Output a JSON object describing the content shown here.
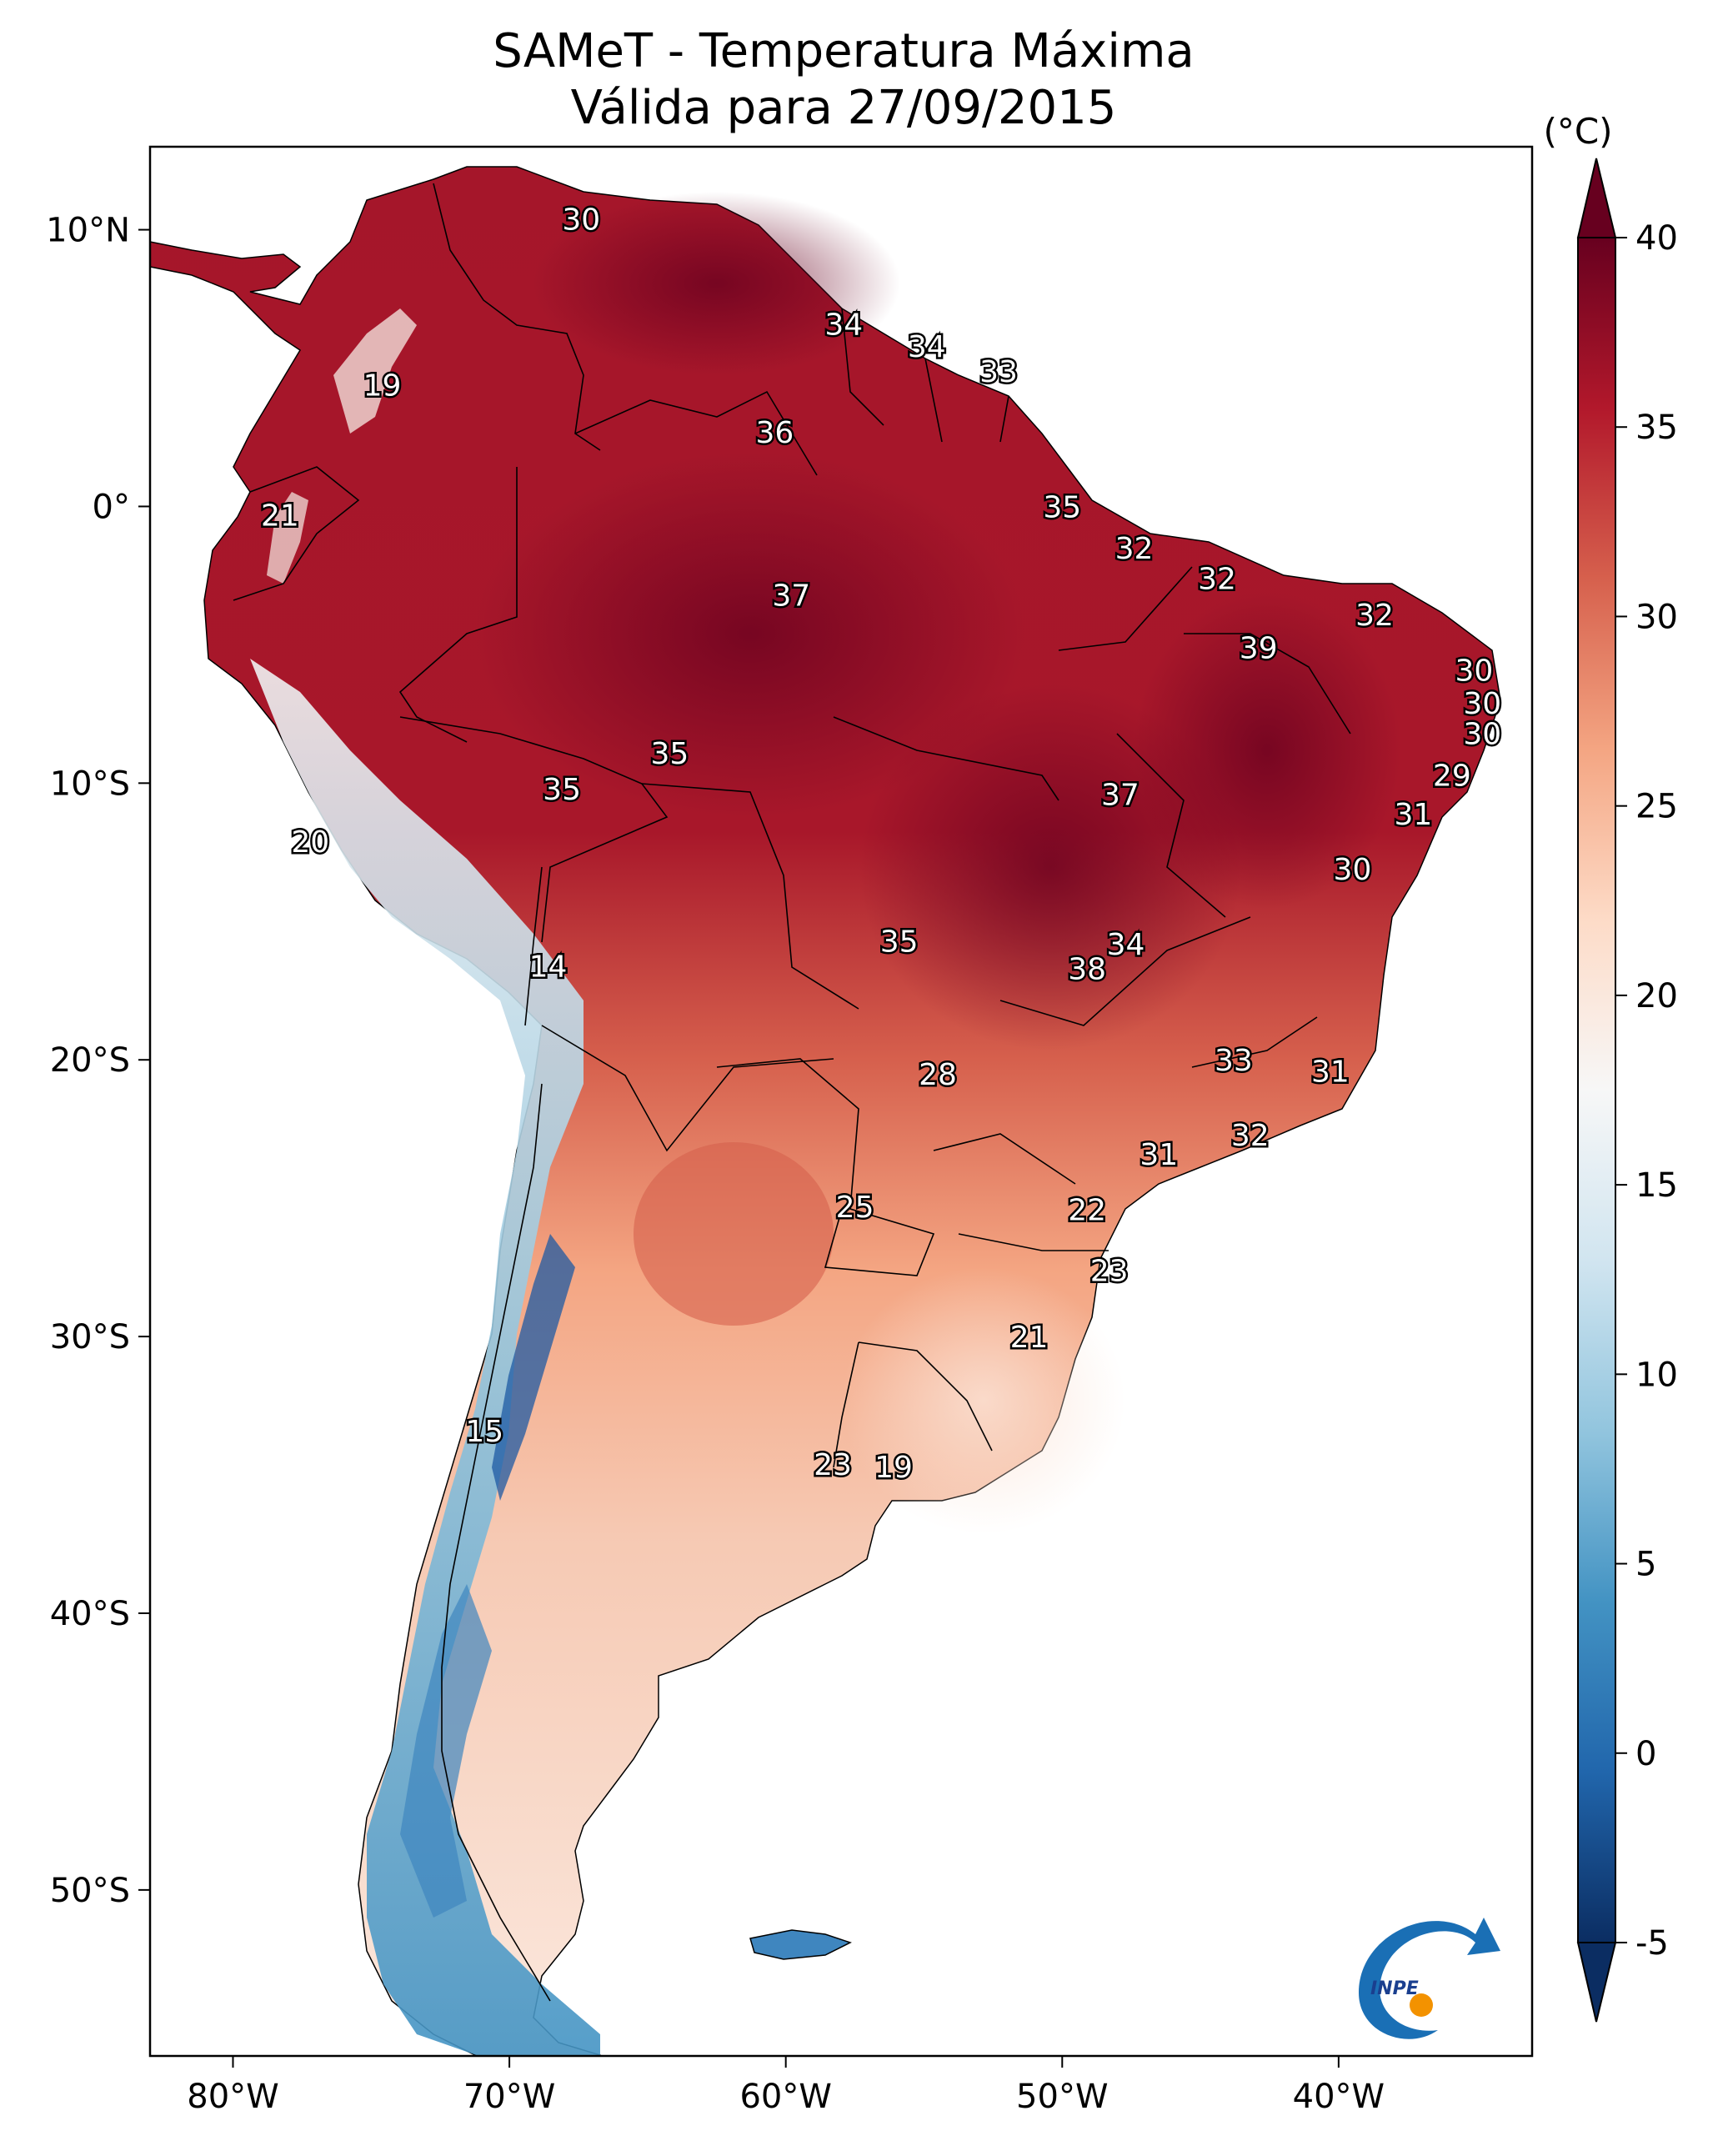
{
  "title": {
    "line1": "SAMeT - Temperatura Máxima",
    "line2": "Válida para 27/09/2015"
  },
  "map": {
    "lon_range": [
      -83,
      -33
    ],
    "lat_range": [
      -56,
      13
    ],
    "lon_ticks": [
      "80°W",
      "70°W",
      "60°W",
      "50°W",
      "40°W"
    ],
    "lon_tick_values": [
      -80,
      -70,
      -60,
      -50,
      -40
    ],
    "lat_ticks": [
      "10°N",
      "0°",
      "10°S",
      "20°S",
      "30°S",
      "40°S",
      "50°S"
    ],
    "lat_tick_values": [
      10,
      0,
      -10,
      -20,
      -30,
      -40,
      -50
    ],
    "ocean_color": "#ffffff",
    "border_color": "#000000"
  },
  "colorbar": {
    "unit": "(°C)",
    "range": [
      -5,
      40
    ],
    "extend": "both",
    "ticks": [
      "40",
      "35",
      "30",
      "25",
      "20",
      "15",
      "10",
      "5",
      "0",
      "-5"
    ],
    "tick_values": [
      40,
      35,
      30,
      25,
      20,
      15,
      10,
      5,
      0,
      -5
    ],
    "colors": [
      "#0b2d62",
      "#2166ac",
      "#4393c3",
      "#92c5de",
      "#d1e5f0",
      "#f7f7f7",
      "#fddbc7",
      "#f4a582",
      "#d6604d",
      "#b2182b",
      "#67001f"
    ]
  },
  "labels": [
    {
      "text": "30",
      "lon": -67.4,
      "lat": 10.4
    },
    {
      "text": "19",
      "lon": -74.6,
      "lat": 4.4
    },
    {
      "text": "34",
      "lon": -57.9,
      "lat": 6.6
    },
    {
      "text": "34",
      "lon": -54.9,
      "lat": 5.8
    },
    {
      "text": "33",
      "lon": -52.3,
      "lat": 4.9
    },
    {
      "text": "36",
      "lon": -60.4,
      "lat": 2.7
    },
    {
      "text": "21",
      "lon": -78.3,
      "lat": -0.3
    },
    {
      "text": "35",
      "lon": -50.0,
      "lat": 0.0
    },
    {
      "text": "32",
      "lon": -47.4,
      "lat": -1.5
    },
    {
      "text": "32",
      "lon": -44.4,
      "lat": -2.6
    },
    {
      "text": "37",
      "lon": -59.8,
      "lat": -3.2
    },
    {
      "text": "32",
      "lon": -38.7,
      "lat": -3.9
    },
    {
      "text": "39",
      "lon": -42.9,
      "lat": -5.1
    },
    {
      "text": "30",
      "lon": -35.1,
      "lat": -5.9
    },
    {
      "text": "30",
      "lon": -34.8,
      "lat": -7.1
    },
    {
      "text": "30",
      "lon": -34.8,
      "lat": -8.2
    },
    {
      "text": "35",
      "lon": -64.2,
      "lat": -8.9
    },
    {
      "text": "35",
      "lon": -68.1,
      "lat": -10.2
    },
    {
      "text": "37",
      "lon": -47.9,
      "lat": -10.4
    },
    {
      "text": "29",
      "lon": -35.9,
      "lat": -9.7
    },
    {
      "text": "31",
      "lon": -37.3,
      "lat": -11.1
    },
    {
      "text": "20",
      "lon": -77.2,
      "lat": -12.1
    },
    {
      "text": "30",
      "lon": -39.5,
      "lat": -13.1
    },
    {
      "text": "35",
      "lon": -55.9,
      "lat": -15.7
    },
    {
      "text": "34",
      "lon": -47.7,
      "lat": -15.8
    },
    {
      "text": "38",
      "lon": -49.1,
      "lat": -16.7
    },
    {
      "text": "14",
      "lon": -68.6,
      "lat": -16.6
    },
    {
      "text": "33",
      "lon": -43.8,
      "lat": -20.0
    },
    {
      "text": "31",
      "lon": -40.3,
      "lat": -20.4
    },
    {
      "text": "28",
      "lon": -54.5,
      "lat": -20.5
    },
    {
      "text": "32",
      "lon": -43.2,
      "lat": -22.7
    },
    {
      "text": "31",
      "lon": -46.5,
      "lat": -23.4
    },
    {
      "text": "25",
      "lon": -57.5,
      "lat": -25.3
    },
    {
      "text": "22",
      "lon": -49.1,
      "lat": -25.4
    },
    {
      "text": "23",
      "lon": -48.3,
      "lat": -27.6
    },
    {
      "text": "21",
      "lon": -51.2,
      "lat": -30.0
    },
    {
      "text": "15",
      "lon": -70.9,
      "lat": -33.4
    },
    {
      "text": "23",
      "lon": -58.3,
      "lat": -34.6
    },
    {
      "text": "19",
      "lon": -56.1,
      "lat": -34.7
    }
  ],
  "logo": {
    "text": "INPE",
    "colors": {
      "blue": "#1a6fb5",
      "orange": "#f39200"
    }
  }
}
